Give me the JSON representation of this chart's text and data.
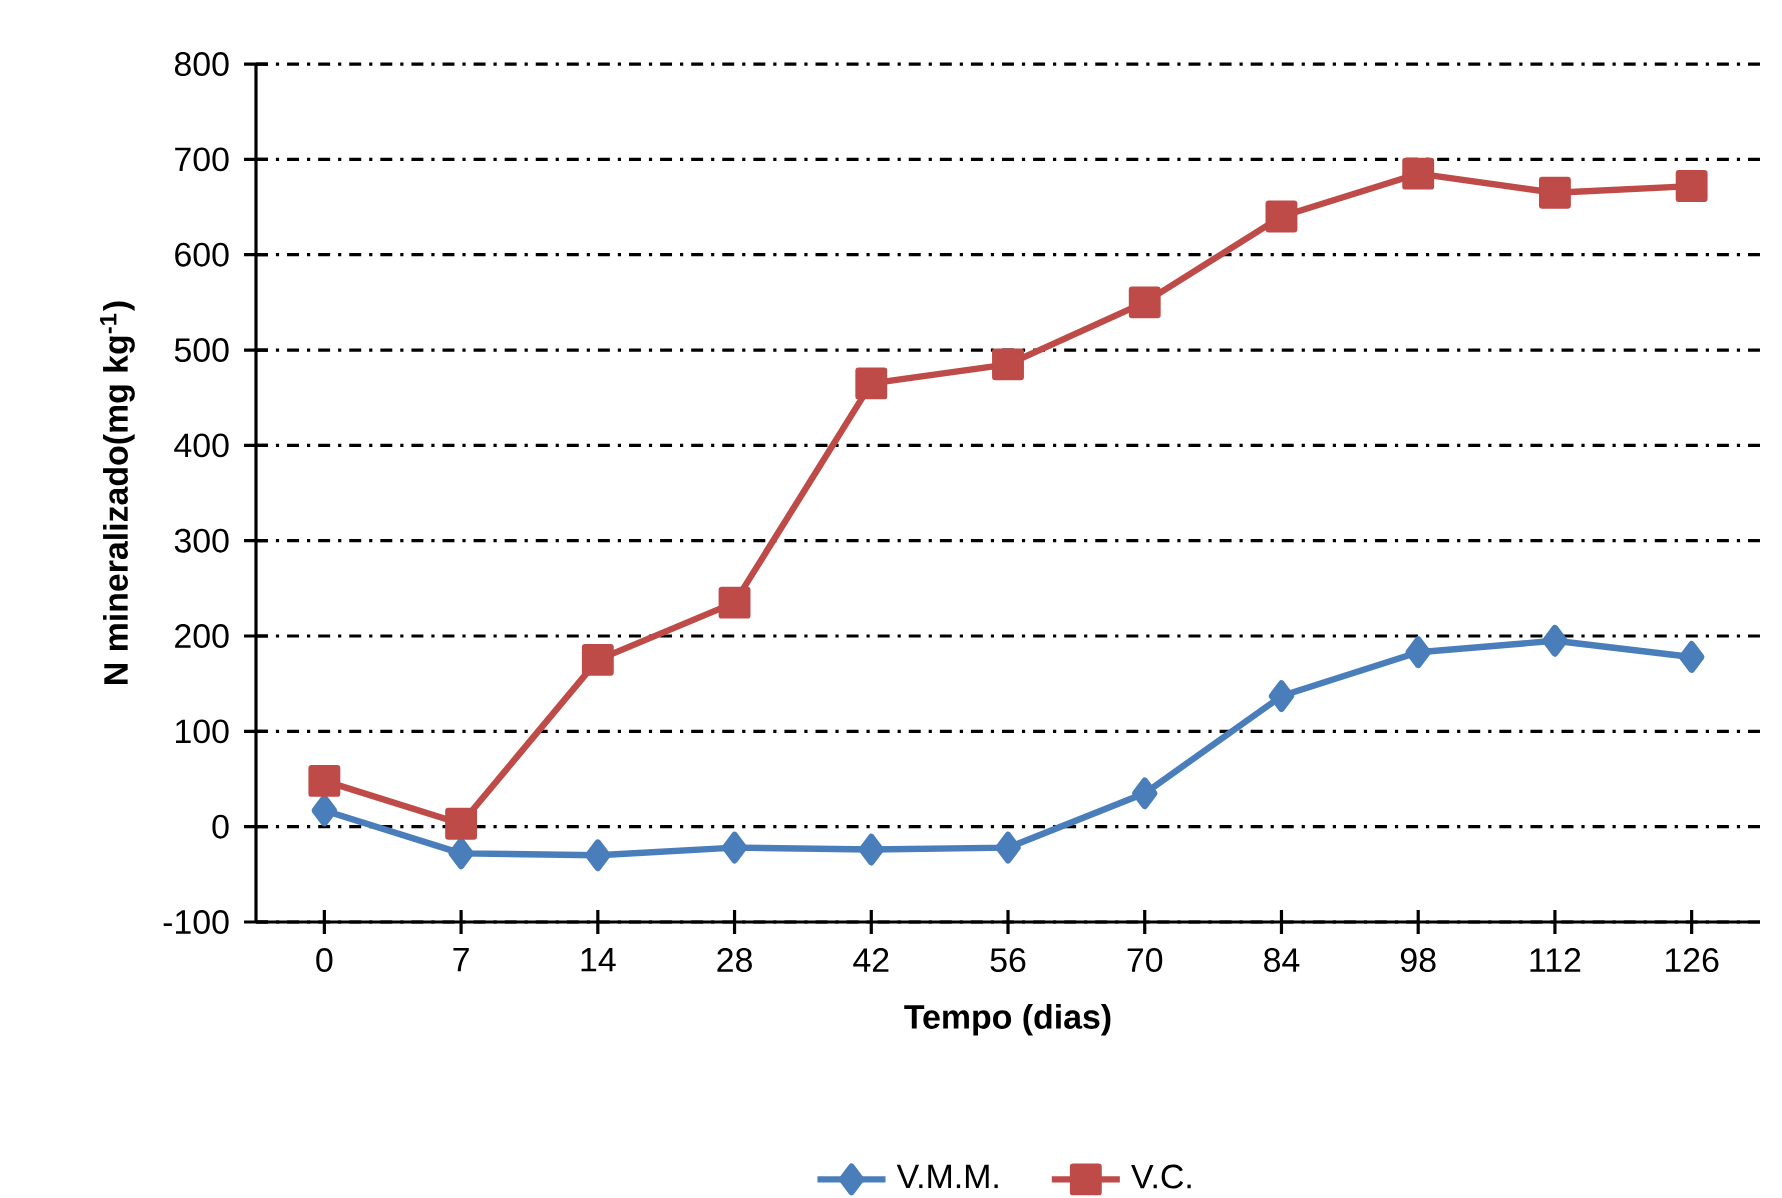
{
  "chart_data": {
    "type": "line",
    "xlabel": "Tempo (dias)",
    "ylabel": "N mineralizado(mg kg$^{-1}$)",
    "categories": [
      "0",
      "7",
      "14",
      "28",
      "42",
      "56",
      "70",
      "84",
      "98",
      "112",
      "126"
    ],
    "series": [
      {
        "name": "V.M.M.",
        "color": "#4a7ebb",
        "marker": "diamond",
        "values": [
          17,
          -28,
          -30,
          -22,
          -24,
          -22,
          35,
          137,
          183,
          195,
          178
        ]
      },
      {
        "name": "V.C.",
        "color": "#be4b48",
        "marker": "square",
        "values": [
          48,
          3,
          175,
          235,
          465,
          485,
          550,
          640,
          685,
          665,
          672
        ]
      }
    ],
    "ylim": [
      -100,
      800
    ],
    "yticks": [
      -100,
      0,
      100,
      200,
      300,
      400,
      500,
      600,
      700,
      800
    ],
    "grid": "y",
    "legend": "bottom",
    "line_style": "solid"
  }
}
